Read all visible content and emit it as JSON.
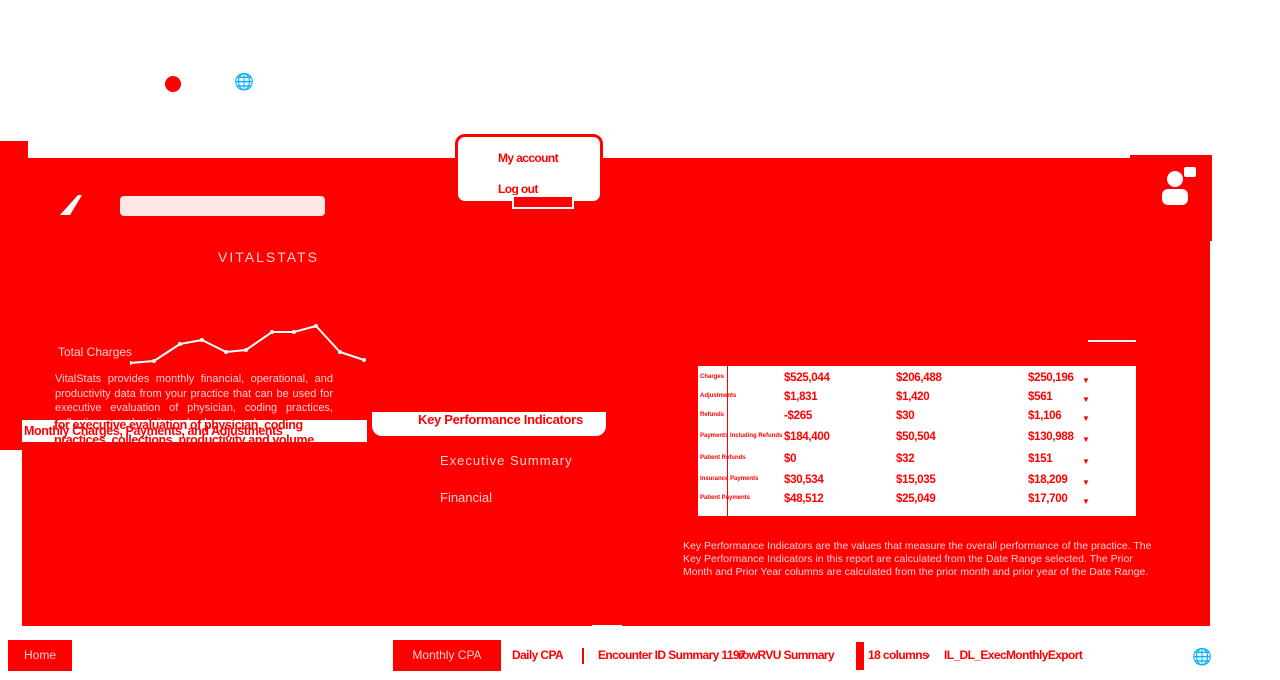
{
  "header": {
    "brand_sub": "VITALSTATS"
  },
  "account_menu": {
    "my_account": "My account",
    "log_out": "Log out"
  },
  "left_panel": {
    "spark_label": "Total Charges",
    "description": "VitalStats provides monthly financial, operational, and productivity data from your practice that can be used for executive evaluation of physician, coding practices, collections, productivity and volume trends.",
    "card_title": "Monthly Charges, Payments, and Adjustments",
    "overlay_line1": "for executive evaluation of physician, coding",
    "overlay_line2": "practices, collections, productivity and volume"
  },
  "kpi_panel": {
    "title": "Key Performance Indicators",
    "link_1": "Executive Summary",
    "link_2": "Financial"
  },
  "table": {
    "rows": [
      {
        "label": "Charges",
        "v1": "$525,044",
        "v2": "$206,488",
        "v3": "$250,196"
      },
      {
        "label": "Adjustments",
        "v1": "$1,831",
        "v2": "$1,420",
        "v3": "$561"
      },
      {
        "label": "Refunds",
        "v1": "-$265",
        "v2": "$30",
        "v3": "$1,106"
      },
      {
        "label": "Payments Including Refunds",
        "v1": "$184,400",
        "v2": "$50,504",
        "v3": "$130,988"
      },
      {
        "label": "Patient Refunds",
        "v1": "$0",
        "v2": "$32",
        "v3": "$151"
      },
      {
        "label": "Insurance Payments",
        "v1": "$30,534",
        "v2": "$15,035",
        "v3": "$18,209"
      },
      {
        "label": "Patient Payments",
        "v1": "$48,512",
        "v2": "$25,049",
        "v3": "$17,700"
      }
    ]
  },
  "right_desc": "Key Performance Indicators are the values that measure the overall performance of the practice. The Key Performance Indicators in this report are calculated from the Date Range selected. The Prior Month and Prior Year columns are calculated from the prior month and prior year of the Date Range.",
  "bottom_bar": {
    "home": "Home",
    "daily_cpa_btn": "Monthly CPA",
    "tab_daily_cpa": "Daily CPA",
    "tab_encounter": "Encounter ID Summary 1197",
    "tab_rvu": "rowRVU Summary",
    "tab_columns": "18 columns",
    "tab_export": "IL_DL_ExecMonthlyExport"
  },
  "colors": {
    "primary": "#ff0000",
    "background": "#ffffff",
    "muted_text": "#ffd0d0"
  }
}
